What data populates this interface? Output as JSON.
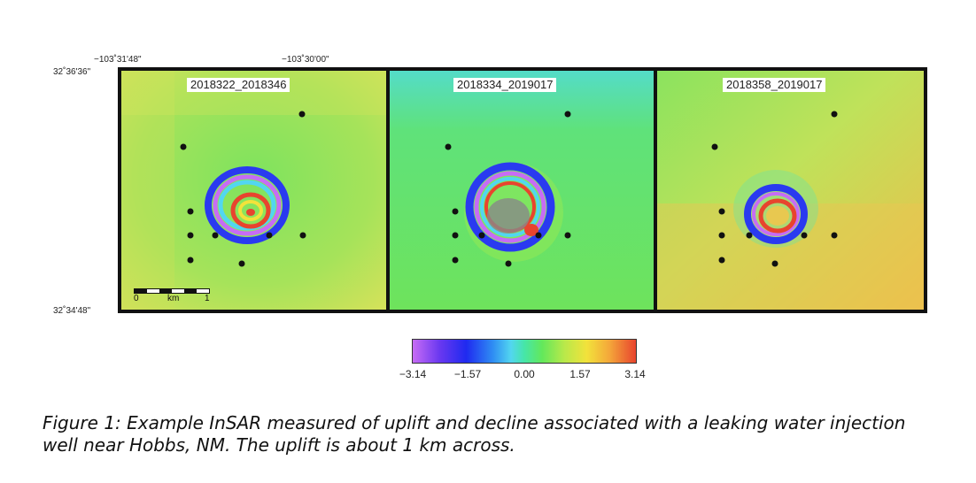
{
  "coords": {
    "lon_left": "−103˚31'48\"",
    "lon_mid": "−103˚30'00\"",
    "lat_top": "32˚36'36\"",
    "lat_bottom": "32˚34'48\""
  },
  "panels": [
    {
      "label": "2018322_2018346"
    },
    {
      "label": "2018334_2019017"
    },
    {
      "label": "2018358_2019017"
    }
  ],
  "scalebar": {
    "start": "0",
    "unit": "km",
    "end": "1"
  },
  "colorbar": {
    "ticks": [
      "−3.14",
      "−1.57",
      "0.00",
      "1.57",
      "3.14"
    ],
    "colors": [
      "#c76cf5",
      "#1f2af0",
      "#52d6f0",
      "#63e85b",
      "#f2e23b",
      "#e8442e"
    ]
  },
  "caption": "Figure 1: Example InSAR measured of uplift and decline associated with a leaking water injection well near Hobbs, NM. The uplift is about 1 km across."
}
